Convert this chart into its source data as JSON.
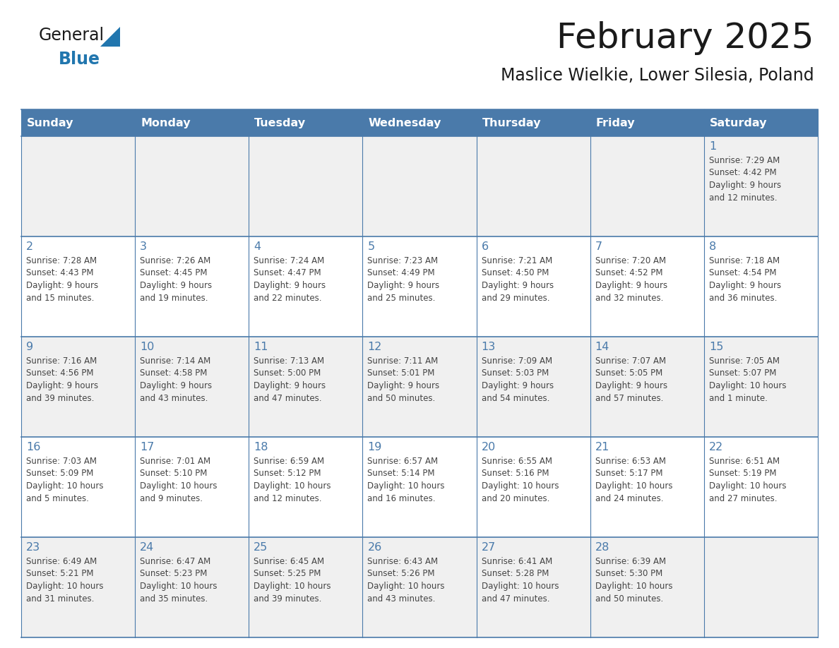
{
  "title": "February 2025",
  "subtitle": "Maslice Wielkie, Lower Silesia, Poland",
  "header_color": "#4a7aaa",
  "header_text_color": "#FFFFFF",
  "cell_bg_row0": "#f0f0f0",
  "cell_bg_row1": "#ffffff",
  "cell_bg_row2": "#f0f0f0",
  "cell_bg_row3": "#ffffff",
  "cell_bg_row4": "#f0f0f0",
  "days_of_week": [
    "Sunday",
    "Monday",
    "Tuesday",
    "Wednesday",
    "Thursday",
    "Friday",
    "Saturday"
  ],
  "day_number_color": "#4a7aaa",
  "text_color": "#444444",
  "line_color": "#4a7aaa",
  "logo_general_color": "#1a1a1a",
  "logo_blue_color": "#2176AE",
  "logo_triangle_color": "#2176AE",
  "calendar_data": [
    [
      {
        "day": "",
        "info": ""
      },
      {
        "day": "",
        "info": ""
      },
      {
        "day": "",
        "info": ""
      },
      {
        "day": "",
        "info": ""
      },
      {
        "day": "",
        "info": ""
      },
      {
        "day": "",
        "info": ""
      },
      {
        "day": "1",
        "info": "Sunrise: 7:29 AM\nSunset: 4:42 PM\nDaylight: 9 hours\nand 12 minutes."
      }
    ],
    [
      {
        "day": "2",
        "info": "Sunrise: 7:28 AM\nSunset: 4:43 PM\nDaylight: 9 hours\nand 15 minutes."
      },
      {
        "day": "3",
        "info": "Sunrise: 7:26 AM\nSunset: 4:45 PM\nDaylight: 9 hours\nand 19 minutes."
      },
      {
        "day": "4",
        "info": "Sunrise: 7:24 AM\nSunset: 4:47 PM\nDaylight: 9 hours\nand 22 minutes."
      },
      {
        "day": "5",
        "info": "Sunrise: 7:23 AM\nSunset: 4:49 PM\nDaylight: 9 hours\nand 25 minutes."
      },
      {
        "day": "6",
        "info": "Sunrise: 7:21 AM\nSunset: 4:50 PM\nDaylight: 9 hours\nand 29 minutes."
      },
      {
        "day": "7",
        "info": "Sunrise: 7:20 AM\nSunset: 4:52 PM\nDaylight: 9 hours\nand 32 minutes."
      },
      {
        "day": "8",
        "info": "Sunrise: 7:18 AM\nSunset: 4:54 PM\nDaylight: 9 hours\nand 36 minutes."
      }
    ],
    [
      {
        "day": "9",
        "info": "Sunrise: 7:16 AM\nSunset: 4:56 PM\nDaylight: 9 hours\nand 39 minutes."
      },
      {
        "day": "10",
        "info": "Sunrise: 7:14 AM\nSunset: 4:58 PM\nDaylight: 9 hours\nand 43 minutes."
      },
      {
        "day": "11",
        "info": "Sunrise: 7:13 AM\nSunset: 5:00 PM\nDaylight: 9 hours\nand 47 minutes."
      },
      {
        "day": "12",
        "info": "Sunrise: 7:11 AM\nSunset: 5:01 PM\nDaylight: 9 hours\nand 50 minutes."
      },
      {
        "day": "13",
        "info": "Sunrise: 7:09 AM\nSunset: 5:03 PM\nDaylight: 9 hours\nand 54 minutes."
      },
      {
        "day": "14",
        "info": "Sunrise: 7:07 AM\nSunset: 5:05 PM\nDaylight: 9 hours\nand 57 minutes."
      },
      {
        "day": "15",
        "info": "Sunrise: 7:05 AM\nSunset: 5:07 PM\nDaylight: 10 hours\nand 1 minute."
      }
    ],
    [
      {
        "day": "16",
        "info": "Sunrise: 7:03 AM\nSunset: 5:09 PM\nDaylight: 10 hours\nand 5 minutes."
      },
      {
        "day": "17",
        "info": "Sunrise: 7:01 AM\nSunset: 5:10 PM\nDaylight: 10 hours\nand 9 minutes."
      },
      {
        "day": "18",
        "info": "Sunrise: 6:59 AM\nSunset: 5:12 PM\nDaylight: 10 hours\nand 12 minutes."
      },
      {
        "day": "19",
        "info": "Sunrise: 6:57 AM\nSunset: 5:14 PM\nDaylight: 10 hours\nand 16 minutes."
      },
      {
        "day": "20",
        "info": "Sunrise: 6:55 AM\nSunset: 5:16 PM\nDaylight: 10 hours\nand 20 minutes."
      },
      {
        "day": "21",
        "info": "Sunrise: 6:53 AM\nSunset: 5:17 PM\nDaylight: 10 hours\nand 24 minutes."
      },
      {
        "day": "22",
        "info": "Sunrise: 6:51 AM\nSunset: 5:19 PM\nDaylight: 10 hours\nand 27 minutes."
      }
    ],
    [
      {
        "day": "23",
        "info": "Sunrise: 6:49 AM\nSunset: 5:21 PM\nDaylight: 10 hours\nand 31 minutes."
      },
      {
        "day": "24",
        "info": "Sunrise: 6:47 AM\nSunset: 5:23 PM\nDaylight: 10 hours\nand 35 minutes."
      },
      {
        "day": "25",
        "info": "Sunrise: 6:45 AM\nSunset: 5:25 PM\nDaylight: 10 hours\nand 39 minutes."
      },
      {
        "day": "26",
        "info": "Sunrise: 6:43 AM\nSunset: 5:26 PM\nDaylight: 10 hours\nand 43 minutes."
      },
      {
        "day": "27",
        "info": "Sunrise: 6:41 AM\nSunset: 5:28 PM\nDaylight: 10 hours\nand 47 minutes."
      },
      {
        "day": "28",
        "info": "Sunrise: 6:39 AM\nSunset: 5:30 PM\nDaylight: 10 hours\nand 50 minutes."
      },
      {
        "day": "",
        "info": ""
      }
    ]
  ]
}
